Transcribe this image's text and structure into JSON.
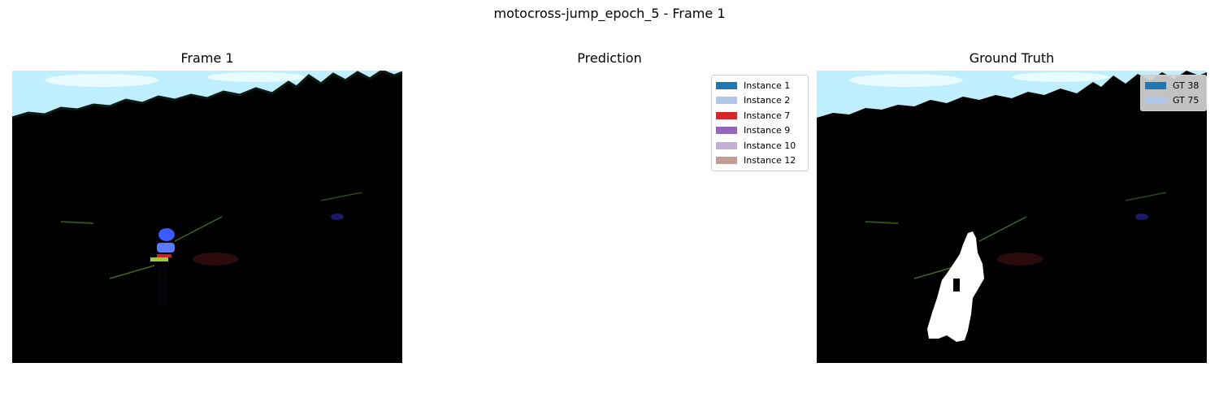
{
  "figure": {
    "title": "motocross-jump_epoch_5 - Frame 1"
  },
  "panels": [
    {
      "title": "Frame 1"
    },
    {
      "title": "Prediction"
    },
    {
      "title": "Ground Truth"
    }
  ],
  "prediction_legend": [
    {
      "label": "Instance 1",
      "color": "#1f77b4"
    },
    {
      "label": "Instance 2",
      "color": "#aec7e8"
    },
    {
      "label": "Instance 7",
      "color": "#d62728"
    },
    {
      "label": "Instance 9",
      "color": "#9467bd"
    },
    {
      "label": "Instance 10",
      "color": "#c5b0d5"
    },
    {
      "label": "Instance 12",
      "color": "#c49c94"
    }
  ],
  "gt_legend": [
    {
      "label": "GT 38",
      "color": "#1f77b4"
    },
    {
      "label": "GT 75",
      "color": "#aec7e8"
    }
  ]
}
